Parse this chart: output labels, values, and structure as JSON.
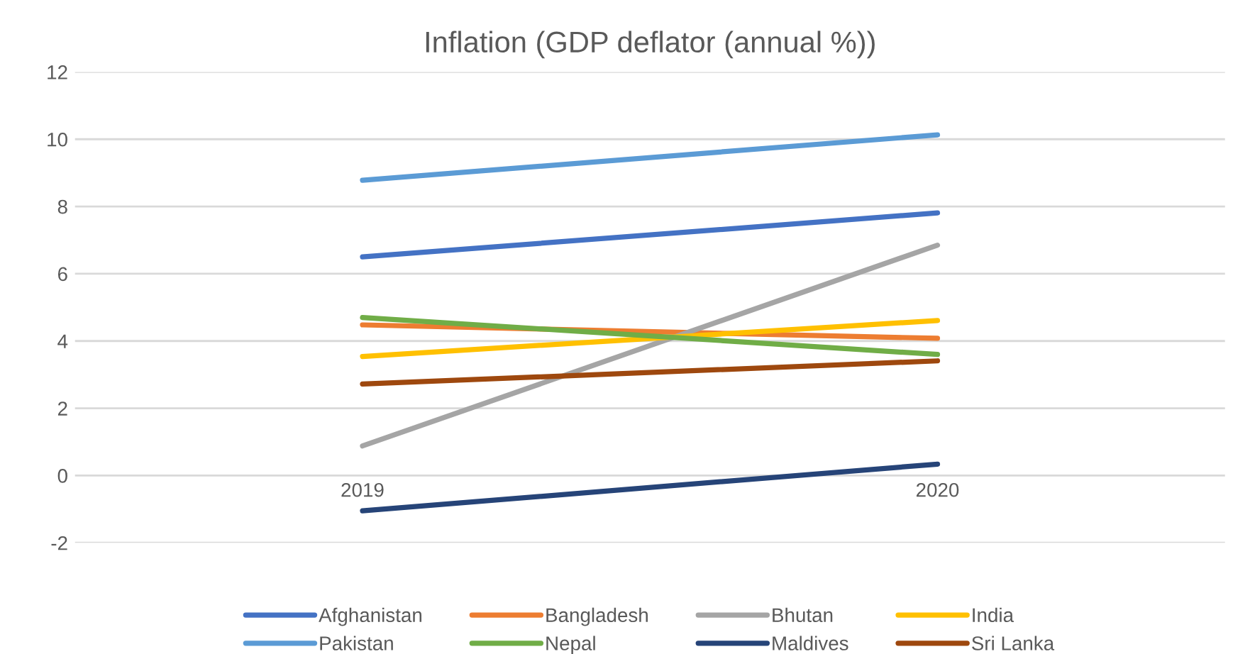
{
  "chart_data": {
    "type": "line",
    "title": "Inflation (GDP deflator (annual %))",
    "categories": [
      "2019",
      "2020"
    ],
    "series": [
      {
        "name": "Afghanistan",
        "color": "#4472c4",
        "values": [
          6.5,
          7.81
        ]
      },
      {
        "name": "Bangladesh",
        "color": "#ed7d31",
        "values": [
          4.48,
          4.08
        ]
      },
      {
        "name": "Bhutan",
        "color": "#a5a5a5",
        "values": [
          0.88,
          6.85
        ]
      },
      {
        "name": "India",
        "color": "#ffc000",
        "values": [
          3.54,
          4.61
        ]
      },
      {
        "name": "Pakistan",
        "color": "#5b9bd5",
        "values": [
          8.78,
          10.13
        ]
      },
      {
        "name": "Nepal",
        "color": "#70ad47",
        "values": [
          4.7,
          3.6
        ]
      },
      {
        "name": "Maldives",
        "color": "#264478",
        "values": [
          -1.05,
          0.34
        ]
      },
      {
        "name": "Sri Lanka",
        "color": "#9e480e",
        "values": [
          2.72,
          3.41
        ]
      }
    ],
    "ylim": [
      -2,
      12
    ],
    "yticks": [
      -2,
      0,
      2,
      4,
      6,
      8,
      10,
      12
    ],
    "grid": "y",
    "legend": "bottom",
    "marker": "none",
    "line_style": "solid"
  }
}
